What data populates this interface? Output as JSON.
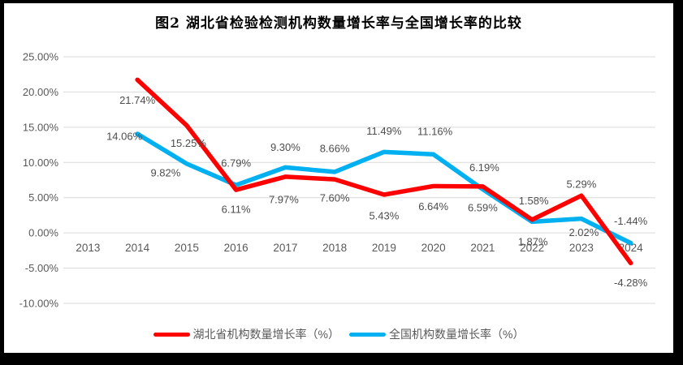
{
  "chart_data": {
    "type": "line",
    "title": "图2  湖北省检验检测机构数量增长率与全国增长率的比较",
    "categories": [
      "2013",
      "2014",
      "2015",
      "2016",
      "2017",
      "2018",
      "2019",
      "2020",
      "2021",
      "2022",
      "2023",
      "2024"
    ],
    "series": [
      {
        "id": "hubei",
        "name": "湖北省机构数量增长率（%）",
        "color": "#FF0000",
        "values": [
          null,
          21.74,
          15.25,
          6.11,
          7.97,
          7.6,
          5.43,
          6.64,
          6.59,
          1.87,
          5.29,
          -4.28
        ],
        "labels": [
          null,
          "21.74%",
          "15.25%",
          "6.11%",
          "7.97%",
          "7.60%",
          "5.43%",
          "6.64%",
          "6.59%",
          "1.87%",
          "5.29%",
          "-4.28%"
        ],
        "label_offsets": [
          null,
          [
            0,
            25
          ],
          [
            2,
            22
          ],
          [
            0,
            24
          ],
          [
            -2,
            28
          ],
          [
            0,
            23
          ],
          [
            0,
            26
          ],
          [
            0,
            25
          ],
          [
            0,
            26
          ],
          [
            1,
            27
          ],
          [
            0,
            -14
          ],
          [
            0,
            24
          ]
        ]
      },
      {
        "id": "national",
        "name": "全国机构数量增长率（%）",
        "color": "#00B0F0",
        "values": [
          null,
          14.06,
          9.82,
          6.79,
          9.3,
          8.66,
          11.49,
          11.16,
          6.19,
          1.58,
          2.02,
          -1.44
        ],
        "labels": [
          null,
          "14.06%",
          "9.82%",
          "6.79%",
          "9.30%",
          "8.66%",
          "11.49%",
          "11.16%",
          "6.19%",
          "1.58%",
          "2.02%",
          "-1.44%"
        ],
        "label_offsets": [
          null,
          [
            -16,
            3
          ],
          [
            -26,
            11
          ],
          [
            0,
            -27
          ],
          [
            0,
            -25
          ],
          [
            0,
            -29
          ],
          [
            0,
            -26
          ],
          [
            2,
            -28
          ],
          [
            2,
            -27
          ],
          [
            2,
            -26
          ],
          [
            3,
            17
          ],
          [
            0,
            -27
          ]
        ]
      }
    ],
    "ylim": [
      -10,
      25
    ],
    "ytick_step": 5,
    "ytick_labels": [
      "25.00%",
      "20.00%",
      "15.00%",
      "10.00%",
      "5.00%",
      "0.00%",
      "-5.00%",
      "-10.00%"
    ],
    "xlabel": "",
    "ylabel": "",
    "grid": true,
    "legend_position": "bottom"
  },
  "colors": {
    "hubei_line": "#FF0000",
    "national_line": "#00B0F0",
    "grid_line": "#D9D9D9",
    "axis_text": "#595959",
    "label_text": "#4D4D4D",
    "title_text": "#000000",
    "frame": "#000000",
    "background": "#FFFFFF"
  }
}
